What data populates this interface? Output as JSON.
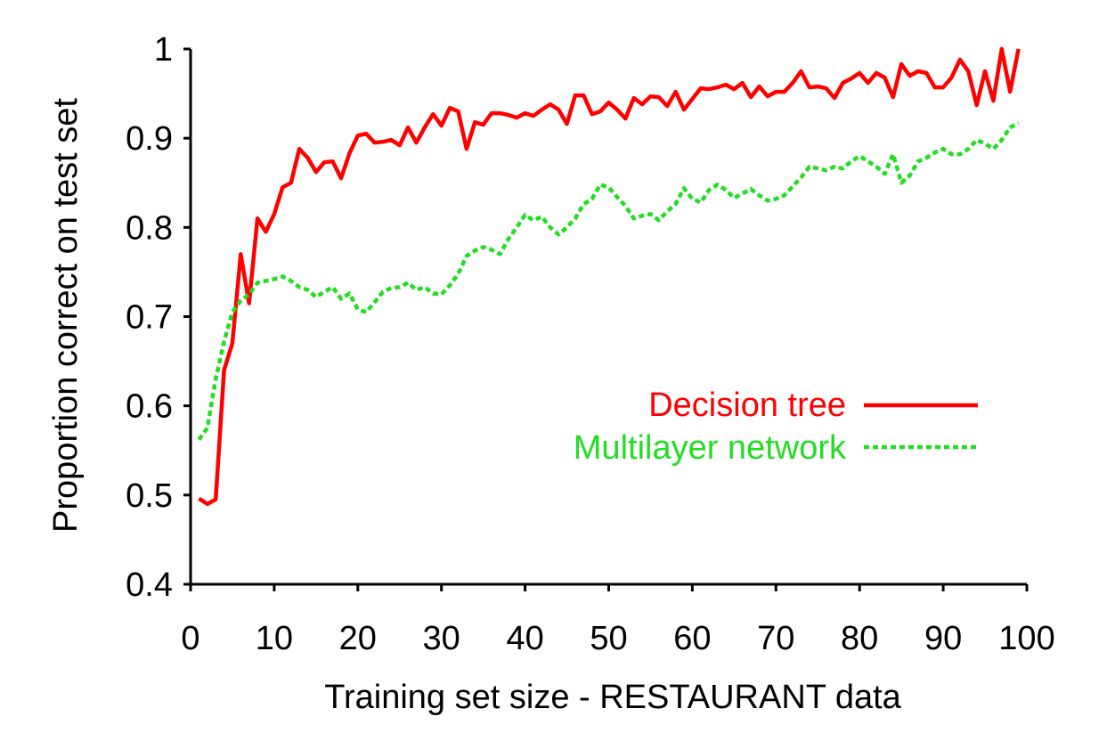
{
  "chart_data": {
    "type": "line",
    "xlabel": "Training set size - RESTAURANT data",
    "ylabel": "Proportion correct on test set",
    "xlim": [
      0,
      100
    ],
    "ylim": [
      0.4,
      1.0
    ],
    "x_ticks": [
      "0",
      "10",
      "20",
      "30",
      "40",
      "50",
      "60",
      "70",
      "80",
      "90",
      "100"
    ],
    "y_ticks": [
      "0.4",
      "0.5",
      "0.6",
      "0.7",
      "0.8",
      "0.9",
      "1"
    ],
    "legend_position": "right",
    "series": [
      {
        "name": "Decision tree",
        "color": "#ff0000",
        "style": "solid",
        "points": [
          [
            1,
            0.496
          ],
          [
            2,
            0.49
          ],
          [
            3,
            0.495
          ],
          [
            4,
            0.64
          ],
          [
            5,
            0.67
          ],
          [
            6,
            0.77
          ],
          [
            7,
            0.715
          ],
          [
            8,
            0.81
          ],
          [
            9,
            0.795
          ],
          [
            10,
            0.815
          ],
          [
            11,
            0.845
          ],
          [
            12,
            0.85
          ],
          [
            13,
            0.888
          ],
          [
            14,
            0.878
          ],
          [
            15,
            0.862
          ],
          [
            16,
            0.873
          ],
          [
            17,
            0.874
          ],
          [
            18,
            0.855
          ],
          [
            19,
            0.883
          ],
          [
            20,
            0.903
          ],
          [
            21,
            0.905
          ],
          [
            22,
            0.895
          ],
          [
            23,
            0.896
          ],
          [
            24,
            0.898
          ],
          [
            25,
            0.892
          ],
          [
            26,
            0.912
          ],
          [
            27,
            0.895
          ],
          [
            28,
            0.912
          ],
          [
            29,
            0.927
          ],
          [
            30,
            0.914
          ],
          [
            31,
            0.934
          ],
          [
            32,
            0.93
          ],
          [
            33,
            0.888
          ],
          [
            34,
            0.918
          ],
          [
            35,
            0.915
          ],
          [
            36,
            0.928
          ],
          [
            37,
            0.928
          ],
          [
            38,
            0.926
          ],
          [
            39,
            0.923
          ],
          [
            40,
            0.928
          ],
          [
            41,
            0.925
          ],
          [
            42,
            0.932
          ],
          [
            43,
            0.938
          ],
          [
            44,
            0.932
          ],
          [
            45,
            0.916
          ],
          [
            46,
            0.948
          ],
          [
            47,
            0.948
          ],
          [
            48,
            0.927
          ],
          [
            49,
            0.93
          ],
          [
            50,
            0.94
          ],
          [
            51,
            0.932
          ],
          [
            52,
            0.922
          ],
          [
            53,
            0.945
          ],
          [
            54,
            0.938
          ],
          [
            55,
            0.947
          ],
          [
            56,
            0.946
          ],
          [
            57,
            0.936
          ],
          [
            58,
            0.952
          ],
          [
            59,
            0.932
          ],
          [
            60,
            0.944
          ],
          [
            61,
            0.956
          ],
          [
            62,
            0.955
          ],
          [
            63,
            0.957
          ],
          [
            64,
            0.96
          ],
          [
            65,
            0.955
          ],
          [
            66,
            0.962
          ],
          [
            67,
            0.946
          ],
          [
            68,
            0.958
          ],
          [
            69,
            0.947
          ],
          [
            70,
            0.952
          ],
          [
            71,
            0.952
          ],
          [
            72,
            0.962
          ],
          [
            73,
            0.975
          ],
          [
            74,
            0.957
          ],
          [
            75,
            0.958
          ],
          [
            76,
            0.956
          ],
          [
            77,
            0.945
          ],
          [
            78,
            0.962
          ],
          [
            79,
            0.967
          ],
          [
            80,
            0.973
          ],
          [
            81,
            0.962
          ],
          [
            82,
            0.973
          ],
          [
            83,
            0.968
          ],
          [
            84,
            0.946
          ],
          [
            85,
            0.983
          ],
          [
            86,
            0.97
          ],
          [
            87,
            0.975
          ],
          [
            88,
            0.973
          ],
          [
            89,
            0.957
          ],
          [
            90,
            0.957
          ],
          [
            91,
            0.968
          ],
          [
            92,
            0.988
          ],
          [
            93,
            0.975
          ],
          [
            94,
            0.937
          ],
          [
            95,
            0.975
          ],
          [
            96,
            0.942
          ],
          [
            97,
            1.0
          ],
          [
            98,
            0.952
          ],
          [
            99,
            1.0
          ]
        ]
      },
      {
        "name": "Multilayer network",
        "color": "#22dd22",
        "style": "dashed",
        "points": [
          [
            1,
            0.562
          ],
          [
            2,
            0.575
          ],
          [
            3,
            0.63
          ],
          [
            4,
            0.672
          ],
          [
            5,
            0.705
          ],
          [
            6,
            0.718
          ],
          [
            7,
            0.725
          ],
          [
            8,
            0.738
          ],
          [
            9,
            0.74
          ],
          [
            10,
            0.742
          ],
          [
            11,
            0.745
          ],
          [
            12,
            0.74
          ],
          [
            13,
            0.733
          ],
          [
            14,
            0.73
          ],
          [
            15,
            0.722
          ],
          [
            16,
            0.728
          ],
          [
            17,
            0.733
          ],
          [
            18,
            0.72
          ],
          [
            19,
            0.726
          ],
          [
            20,
            0.708
          ],
          [
            21,
            0.705
          ],
          [
            22,
            0.716
          ],
          [
            23,
            0.728
          ],
          [
            24,
            0.732
          ],
          [
            25,
            0.733
          ],
          [
            26,
            0.738
          ],
          [
            27,
            0.73
          ],
          [
            28,
            0.733
          ],
          [
            29,
            0.726
          ],
          [
            30,
            0.725
          ],
          [
            31,
            0.735
          ],
          [
            32,
            0.748
          ],
          [
            33,
            0.768
          ],
          [
            34,
            0.774
          ],
          [
            35,
            0.778
          ],
          [
            36,
            0.775
          ],
          [
            37,
            0.77
          ],
          [
            38,
            0.787
          ],
          [
            39,
            0.8
          ],
          [
            40,
            0.814
          ],
          [
            41,
            0.808
          ],
          [
            42,
            0.812
          ],
          [
            43,
            0.8
          ],
          [
            44,
            0.792
          ],
          [
            45,
            0.8
          ],
          [
            46,
            0.81
          ],
          [
            47,
            0.826
          ],
          [
            48,
            0.832
          ],
          [
            49,
            0.848
          ],
          [
            50,
            0.845
          ],
          [
            51,
            0.834
          ],
          [
            52,
            0.824
          ],
          [
            53,
            0.81
          ],
          [
            54,
            0.813
          ],
          [
            55,
            0.815
          ],
          [
            56,
            0.808
          ],
          [
            57,
            0.818
          ],
          [
            58,
            0.826
          ],
          [
            59,
            0.844
          ],
          [
            60,
            0.832
          ],
          [
            61,
            0.828
          ],
          [
            62,
            0.842
          ],
          [
            63,
            0.848
          ],
          [
            64,
            0.842
          ],
          [
            65,
            0.833
          ],
          [
            66,
            0.838
          ],
          [
            67,
            0.843
          ],
          [
            68,
            0.836
          ],
          [
            69,
            0.83
          ],
          [
            70,
            0.832
          ],
          [
            71,
            0.836
          ],
          [
            72,
            0.846
          ],
          [
            73,
            0.856
          ],
          [
            74,
            0.868
          ],
          [
            75,
            0.866
          ],
          [
            76,
            0.864
          ],
          [
            77,
            0.868
          ],
          [
            78,
            0.866
          ],
          [
            79,
            0.874
          ],
          [
            80,
            0.88
          ],
          [
            81,
            0.874
          ],
          [
            82,
            0.868
          ],
          [
            83,
            0.86
          ],
          [
            84,
            0.882
          ],
          [
            85,
            0.85
          ],
          [
            86,
            0.858
          ],
          [
            87,
            0.874
          ],
          [
            88,
            0.878
          ],
          [
            89,
            0.884
          ],
          [
            90,
            0.888
          ],
          [
            91,
            0.882
          ],
          [
            92,
            0.882
          ],
          [
            93,
            0.888
          ],
          [
            94,
            0.898
          ],
          [
            95,
            0.894
          ],
          [
            96,
            0.888
          ],
          [
            97,
            0.898
          ],
          [
            98,
            0.912
          ],
          [
            99,
            0.917
          ]
        ]
      }
    ]
  }
}
